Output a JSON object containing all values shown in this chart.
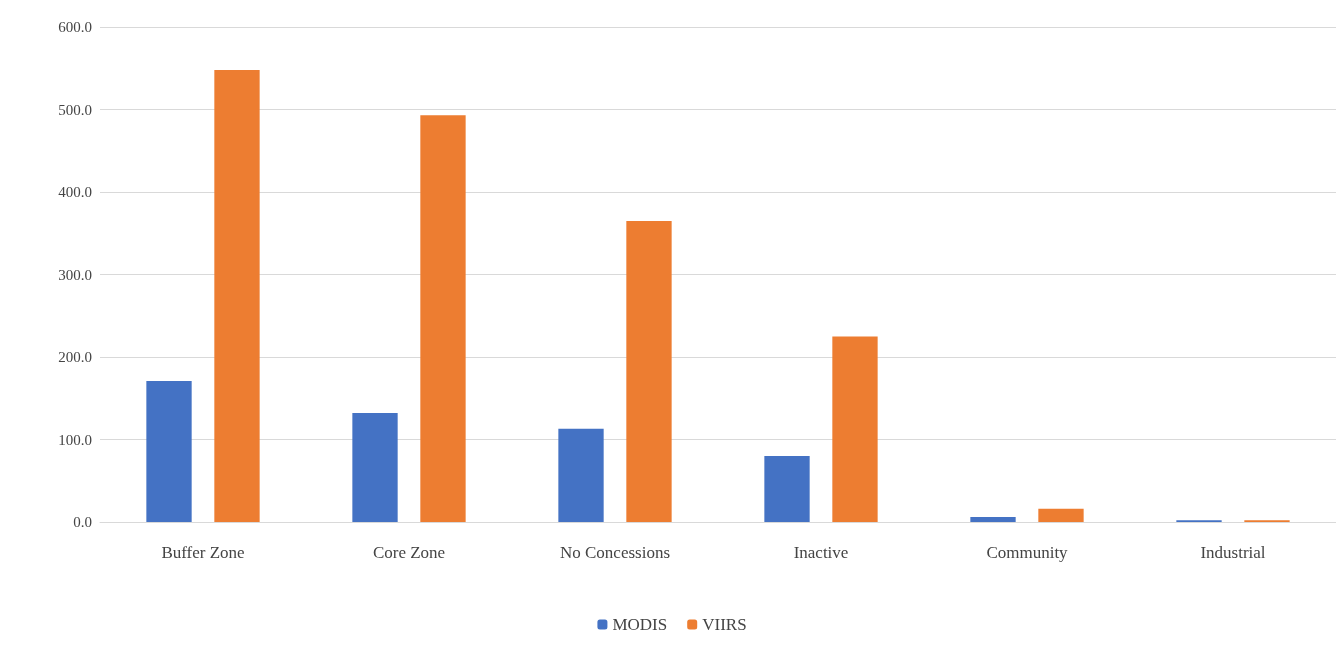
{
  "chart_data": {
    "type": "bar",
    "categories": [
      "Buffer Zone",
      "Core Zone",
      "No Concessions",
      "Inactive",
      "Community",
      "Industrial"
    ],
    "series": [
      {
        "name": "MODIS",
        "color": "#4472c4",
        "values": [
          171,
          132,
          113,
          80,
          6,
          2
        ]
      },
      {
        "name": "VIIRS",
        "color": "#ed7d31",
        "values": [
          548,
          493,
          365,
          225,
          16,
          2
        ]
      }
    ],
    "ylim": [
      0,
      600
    ],
    "yticks": [
      {
        "value": 0,
        "label": "0.0"
      },
      {
        "value": 100,
        "label": "100.0"
      },
      {
        "value": 200,
        "label": "200.0"
      },
      {
        "value": 300,
        "label": "300.0"
      },
      {
        "value": 400,
        "label": "400.0"
      },
      {
        "value": 500,
        "label": "500.0"
      },
      {
        "value": 600,
        "label": "600.0"
      }
    ],
    "grid": true,
    "legend": "bottom"
  }
}
